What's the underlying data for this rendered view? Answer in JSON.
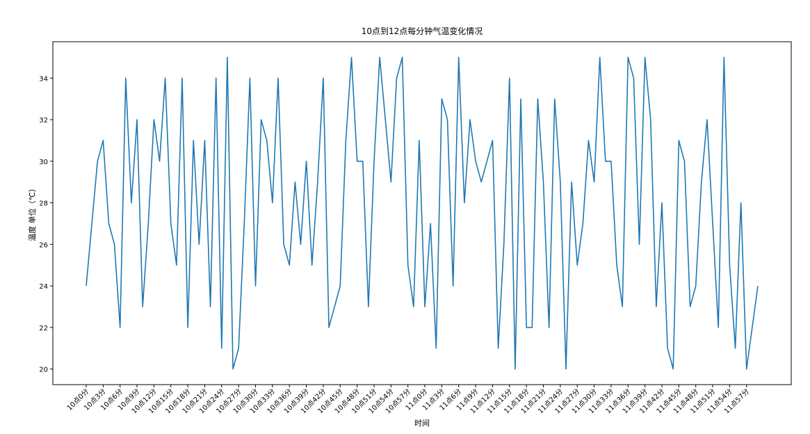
{
  "chart_data": {
    "type": "line",
    "title": "10点到12点每分钟气温变化情况",
    "x_label": "时间",
    "y_label": "温度 单位（℃）",
    "categories": [
      "10点0分",
      null,
      null,
      "10点3分",
      null,
      null,
      "10点6分",
      null,
      null,
      "10点9分",
      null,
      null,
      "10点12分",
      null,
      null,
      "10点15分",
      null,
      null,
      "10点18分",
      null,
      null,
      "10点21分",
      null,
      null,
      "10点24分",
      null,
      null,
      "10点27分",
      null,
      null,
      "10点30分",
      null,
      null,
      "10点33分",
      null,
      null,
      "10点36分",
      null,
      null,
      "10点39分",
      null,
      null,
      "10点42分",
      null,
      null,
      "10点45分",
      null,
      null,
      "10点48分",
      null,
      null,
      "10点51分",
      null,
      null,
      "10点54分",
      null,
      null,
      "10点57分",
      null,
      null,
      "11点0分",
      null,
      null,
      "11点3分",
      null,
      null,
      "11点6分",
      null,
      null,
      "11点9分",
      null,
      null,
      "11点12分",
      null,
      null,
      "11点15分",
      null,
      null,
      "11点18分",
      null,
      null,
      "11点21分",
      null,
      null,
      "11点24分",
      null,
      null,
      "11点27分",
      null,
      null,
      "11点30分",
      null,
      null,
      "11点33分",
      null,
      null,
      "11点36分",
      null,
      null,
      "11点39分",
      null,
      null,
      "11点42分",
      null,
      null,
      "11点45分",
      null,
      null,
      "11点48分",
      null,
      null,
      "11点51分",
      null,
      null,
      "11点54分",
      null,
      null,
      "11点57分",
      null,
      null
    ],
    "series": [
      {
        "color": "#1f77b4",
        "values": [
          24,
          27,
          30,
          31,
          27,
          26,
          22,
          34,
          28,
          32,
          23,
          27,
          32,
          30,
          34,
          27,
          25,
          34,
          22,
          31,
          26,
          31,
          23,
          34,
          21,
          35,
          20,
          21,
          27,
          34,
          24,
          32,
          31,
          28,
          34,
          26,
          25,
          29,
          26,
          30,
          25,
          29,
          34,
          22,
          23,
          24,
          31,
          35,
          30,
          30,
          23,
          30,
          35,
          32,
          29,
          34,
          35,
          25,
          23,
          31,
          23,
          27,
          21,
          33,
          32,
          24,
          35,
          28,
          32,
          30,
          29,
          30,
          31,
          21,
          26,
          34,
          20,
          33,
          22,
          22,
          33,
          29,
          22,
          33,
          29,
          20,
          29,
          25,
          27,
          31,
          29,
          35,
          30,
          30,
          25,
          23,
          35,
          34,
          26,
          35,
          32,
          23,
          28,
          21,
          20,
          31,
          30,
          23,
          24,
          29,
          32,
          27,
          22,
          35,
          25,
          21,
          28,
          20,
          22,
          24
        ]
      }
    ],
    "ylim": [
      19.25,
      35.75
    ],
    "yticks": [
      20,
      22,
      24,
      26,
      28,
      30,
      32,
      34
    ],
    "grid": false
  }
}
